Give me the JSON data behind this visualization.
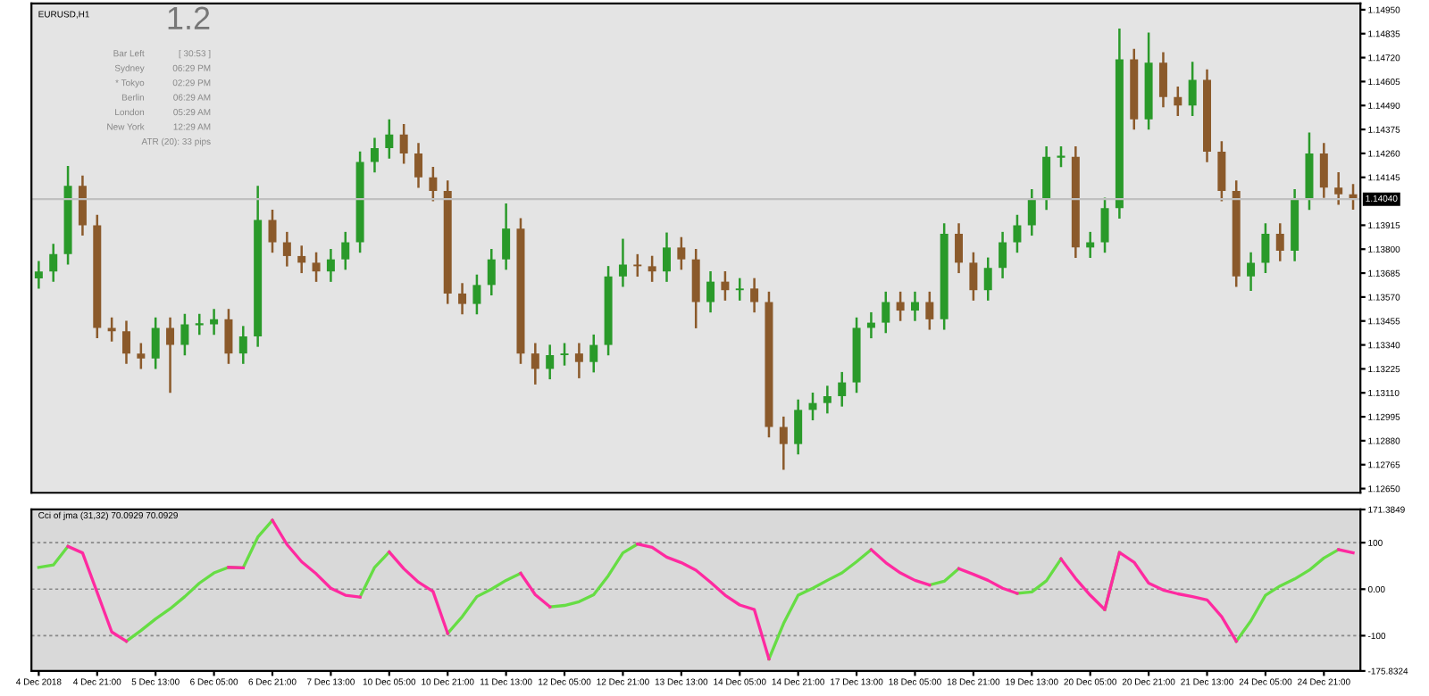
{
  "chart_data": [
    {
      "type": "candlestick",
      "title": "EURUSD,H1",
      "categories": [
        null,
        null,
        null,
        null,
        null,
        null,
        null,
        null,
        null,
        null,
        null,
        null,
        null,
        null,
        null,
        null,
        null,
        null,
        null,
        null,
        null,
        null,
        null,
        null,
        null,
        null,
        null,
        null,
        null,
        null,
        null,
        null,
        null,
        null,
        null,
        null,
        null,
        null,
        null,
        null,
        null,
        null,
        null,
        null,
        null,
        null,
        null,
        null,
        null,
        null,
        null,
        null,
        null,
        null,
        null,
        null,
        null,
        null,
        null,
        null,
        null,
        null,
        null,
        null,
        null,
        null,
        null,
        null,
        null,
        null,
        null,
        null,
        null,
        null,
        null,
        null,
        null,
        null,
        null,
        null,
        null,
        null,
        null,
        null,
        null,
        null,
        null,
        null,
        null,
        null,
        null
      ],
      "ohlc": [
        [
          1.1366,
          1.13743,
          1.1361,
          1.13693
        ],
        [
          1.13693,
          1.13826,
          1.13643,
          1.13776
        ],
        [
          1.13776,
          1.142,
          1.13726,
          1.14104
        ],
        [
          1.14104,
          1.14154,
          1.13865,
          1.13915
        ],
        [
          1.13915,
          1.13965,
          1.13372,
          1.13422
        ],
        [
          1.13422,
          1.13472,
          1.13356,
          1.13406
        ],
        [
          1.13406,
          1.13456,
          1.13249,
          1.13299
        ],
        [
          1.13299,
          1.13349,
          1.13225,
          1.13275
        ],
        [
          1.13275,
          1.13472,
          1.13225,
          1.13422
        ],
        [
          1.13422,
          1.13472,
          1.1311,
          1.1334
        ],
        [
          1.1334,
          1.13489,
          1.1329,
          1.13439
        ],
        [
          1.13439,
          1.13489,
          1.13389,
          1.13439
        ],
        [
          1.13439,
          1.13513,
          1.13389,
          1.13463
        ],
        [
          1.13463,
          1.13513,
          1.13249,
          1.13299
        ],
        [
          1.13299,
          1.13431,
          1.13249,
          1.13381
        ],
        [
          1.13381,
          1.14104,
          1.13331,
          1.1394
        ],
        [
          1.1394,
          1.1399,
          1.13783,
          1.13833
        ],
        [
          1.13833,
          1.13883,
          1.13717,
          1.13767
        ],
        [
          1.13767,
          1.13817,
          1.13685,
          1.13735
        ],
        [
          1.13735,
          1.13785,
          1.13643,
          1.13693
        ],
        [
          1.13693,
          1.13801,
          1.13643,
          1.13751
        ],
        [
          1.13751,
          1.13883,
          1.13701,
          1.13833
        ],
        [
          1.13833,
          1.14269,
          1.13783,
          1.14219
        ],
        [
          1.14219,
          1.14335,
          1.14169,
          1.14285
        ],
        [
          1.14285,
          1.14424,
          1.14235,
          1.14351
        ],
        [
          1.14351,
          1.14401,
          1.1421,
          1.1426
        ],
        [
          1.1426,
          1.1431,
          1.14095,
          1.14145
        ],
        [
          1.14145,
          1.14195,
          1.1403,
          1.1408
        ],
        [
          1.1408,
          1.1413,
          1.13537,
          1.13587
        ],
        [
          1.13587,
          1.13637,
          1.13487,
          1.13537
        ],
        [
          1.13537,
          1.13678,
          1.13487,
          1.13628
        ],
        [
          1.13628,
          1.13801,
          1.13578,
          1.13751
        ],
        [
          1.13751,
          1.1402,
          1.13701,
          1.13899
        ],
        [
          1.13899,
          1.13949,
          1.13249,
          1.13299
        ],
        [
          1.13299,
          1.13349,
          1.1315,
          1.13225
        ],
        [
          1.13225,
          1.13341,
          1.13175,
          1.13291
        ],
        [
          1.13291,
          1.13349,
          1.13241,
          1.13299
        ],
        [
          1.13299,
          1.13349,
          1.1318,
          1.13258
        ],
        [
          1.13258,
          1.1339,
          1.13208,
          1.1334
        ],
        [
          1.1334,
          1.13719,
          1.1329,
          1.13669
        ],
        [
          1.13669,
          1.1385,
          1.13619,
          1.13726
        ],
        [
          1.13726,
          1.13776,
          1.13668,
          1.13718
        ],
        [
          1.13718,
          1.13768,
          1.13643,
          1.13693
        ],
        [
          1.13693,
          1.1388,
          1.13643,
          1.13808
        ],
        [
          1.13808,
          1.13858,
          1.13701,
          1.13751
        ],
        [
          1.13751,
          1.13801,
          1.1342,
          1.13546
        ],
        [
          1.13546,
          1.13694,
          1.13496,
          1.13644
        ],
        [
          1.13644,
          1.13694,
          1.13553,
          1.13603
        ],
        [
          1.13603,
          1.13661,
          1.13553,
          1.13611
        ],
        [
          1.13611,
          1.13661,
          1.13496,
          1.13546
        ],
        [
          1.13546,
          1.13596,
          1.12896,
          1.12946
        ],
        [
          1.12946,
          1.12996,
          1.1274,
          1.12864
        ],
        [
          1.12864,
          1.13078,
          1.12814,
          1.13028
        ],
        [
          1.13028,
          1.13111,
          1.12978,
          1.13061
        ],
        [
          1.13061,
          1.13144,
          1.13011,
          1.13094
        ],
        [
          1.13094,
          1.1321,
          1.13044,
          1.1316
        ],
        [
          1.1316,
          1.13472,
          1.1311,
          1.13422
        ],
        [
          1.13422,
          1.13497,
          1.13372,
          1.13447
        ],
        [
          1.13447,
          1.13596,
          1.13397,
          1.13546
        ],
        [
          1.13546,
          1.13596,
          1.13455,
          1.13505
        ],
        [
          1.13505,
          1.13596,
          1.13455,
          1.13546
        ],
        [
          1.13546,
          1.13596,
          1.13413,
          1.13463
        ],
        [
          1.13463,
          1.13924,
          1.13413,
          1.13874
        ],
        [
          1.13874,
          1.13924,
          1.13685,
          1.13735
        ],
        [
          1.13735,
          1.13785,
          1.13553,
          1.13603
        ],
        [
          1.13603,
          1.1376,
          1.13553,
          1.1371
        ],
        [
          1.1371,
          1.13883,
          1.1366,
          1.13833
        ],
        [
          1.13833,
          1.13965,
          1.13783,
          1.13915
        ],
        [
          1.13915,
          1.14088,
          1.13865,
          1.14038
        ],
        [
          1.14038,
          1.14294,
          1.13988,
          1.14244
        ],
        [
          1.14244,
          1.14294,
          1.14194,
          1.14244
        ],
        [
          1.14244,
          1.14294,
          1.13758,
          1.13808
        ],
        [
          1.13808,
          1.13883,
          1.13758,
          1.13833
        ],
        [
          1.13833,
          1.14047,
          1.13783,
          1.13997
        ],
        [
          1.13997,
          1.1486,
          1.13947,
          1.14712
        ],
        [
          1.14712,
          1.14762,
          1.14374,
          1.14424
        ],
        [
          1.14424,
          1.1484,
          1.14374,
          1.14696
        ],
        [
          1.14696,
          1.14746,
          1.14481,
          1.14531
        ],
        [
          1.14531,
          1.14581,
          1.1444,
          1.1449
        ],
        [
          1.1449,
          1.147,
          1.1444,
          1.14613
        ],
        [
          1.14613,
          1.14663,
          1.14218,
          1.14268
        ],
        [
          1.14268,
          1.14318,
          1.1403,
          1.1408
        ],
        [
          1.1408,
          1.1413,
          1.13619,
          1.13669
        ],
        [
          1.13669,
          1.13785,
          1.136,
          1.13735
        ],
        [
          1.13735,
          1.13924,
          1.13685,
          1.13874
        ],
        [
          1.13874,
          1.13924,
          1.13742,
          1.13792
        ],
        [
          1.13792,
          1.14088,
          1.13742,
          1.14038
        ],
        [
          1.14038,
          1.1436,
          1.13988,
          1.1426
        ],
        [
          1.1426,
          1.1431,
          1.14046,
          1.14096
        ],
        [
          1.14096,
          1.1417,
          1.14013,
          1.14063
        ],
        [
          1.14063,
          1.14113,
          1.1399,
          1.1404
        ]
      ],
      "colors": [
        "#2a9a2a",
        "#2a9a2a",
        "#2a9a2a",
        "#8b5a2b",
        "#8b5a2b",
        "#8b5a2b",
        "#8b5a2b",
        "#8b5a2b",
        "#2a9a2a",
        "#8b5a2b",
        "#2a9a2a",
        "#2a9a2a",
        "#2a9a2a",
        "#8b5a2b",
        "#2a9a2a",
        "#2a9a2a",
        "#8b5a2b",
        "#8b5a2b",
        "#8b5a2b",
        "#8b5a2b",
        "#2a9a2a",
        "#2a9a2a",
        "#2a9a2a",
        "#2a9a2a",
        "#2a9a2a",
        "#8b5a2b",
        "#8b5a2b",
        "#8b5a2b",
        "#8b5a2b",
        "#8b5a2b",
        "#2a9a2a",
        "#2a9a2a",
        "#2a9a2a",
        "#8b5a2b",
        "#8b5a2b",
        "#2a9a2a",
        "#2a9a2a",
        "#8b5a2b",
        "#2a9a2a",
        "#2a9a2a",
        "#2a9a2a",
        "#8b5a2b",
        "#8b5a2b",
        "#2a9a2a",
        "#8b5a2b",
        "#8b5a2b",
        "#2a9a2a",
        "#8b5a2b",
        "#2a9a2a",
        "#8b5a2b",
        "#8b5a2b",
        "#8b5a2b",
        "#2a9a2a",
        "#2a9a2a",
        "#2a9a2a",
        "#2a9a2a",
        "#2a9a2a",
        "#2a9a2a",
        "#2a9a2a",
        "#8b5a2b",
        "#2a9a2a",
        "#8b5a2b",
        "#2a9a2a",
        "#8b5a2b",
        "#8b5a2b",
        "#2a9a2a",
        "#2a9a2a",
        "#2a9a2a",
        "#2a9a2a",
        "#2a9a2a",
        "#2a9a2a",
        "#8b5a2b",
        "#2a9a2a",
        "#2a9a2a",
        "#2a9a2a",
        "#8b5a2b",
        "#2a9a2a",
        "#8b5a2b",
        "#8b5a2b",
        "#2a9a2a",
        "#8b5a2b",
        "#8b5a2b",
        "#8b5a2b",
        "#2a9a2a",
        "#2a9a2a",
        "#8b5a2b",
        "#2a9a2a",
        "#2a9a2a",
        "#8b5a2b",
        "#8b5a2b",
        "#8b5a2b"
      ],
      "ylim": [
        1.1263,
        1.1498
      ],
      "yticks": [
        {
          "value": 1.1265,
          "label": "1.12650"
        },
        {
          "value": 1.12765,
          "label": "1.12765"
        },
        {
          "value": 1.1288,
          "label": "1.12880"
        },
        {
          "value": 1.12995,
          "label": "1.12995"
        },
        {
          "value": 1.1311,
          "label": "1.13110"
        },
        {
          "value": 1.13225,
          "label": "1.13225"
        },
        {
          "value": 1.1334,
          "label": "1.13340"
        },
        {
          "value": 1.13455,
          "label": "1.13455"
        },
        {
          "value": 1.1357,
          "label": "1.13570"
        },
        {
          "value": 1.13685,
          "label": "1.13685"
        },
        {
          "value": 1.138,
          "label": "1.13800"
        },
        {
          "value": 1.13915,
          "label": "1.13915"
        },
        {
          "value": 1.14145,
          "label": "1.14145"
        },
        {
          "value": 1.1426,
          "label": "1.14260"
        },
        {
          "value": 1.14375,
          "label": "1.14375"
        },
        {
          "value": 1.1449,
          "label": "1.14490"
        },
        {
          "value": 1.14605,
          "label": "1.14605"
        },
        {
          "value": 1.1472,
          "label": "1.14720"
        },
        {
          "value": 1.14835,
          "label": "1.14835"
        },
        {
          "value": 1.1495,
          "label": "1.14950"
        }
      ],
      "ref_lines": [
        {
          "axis": "y",
          "value": 1.1404,
          "label": "1.14040",
          "color": "#c0c0c0"
        }
      ],
      "annotations": [
        "1.2",
        "Bar Left",
        "[ 30:53 ]",
        "Sydney",
        "06:29 PM",
        "* Tokyo",
        "02:29 PM",
        "Berlin",
        "06:29 AM",
        "London",
        "05:29 AM",
        "New York",
        "12:29 AM",
        "ATR (20): 33 pips"
      ]
    },
    {
      "type": "line",
      "title": "Cci of jma (31,32) 70.0929 70.0929",
      "categories": [
        "4 Dec 2018",
        null,
        null,
        null,
        "4 Dec 21:00",
        null,
        null,
        null,
        "5 Dec 13:00",
        null,
        null,
        null,
        "6 Dec 05:00",
        null,
        null,
        null,
        "6 Dec 21:00",
        null,
        null,
        null,
        "7 Dec 13:00",
        null,
        null,
        null,
        "10 Dec 05:00",
        null,
        null,
        null,
        "10 Dec 21:00",
        null,
        null,
        null,
        "11 Dec 13:00",
        null,
        null,
        null,
        "12 Dec 05:00",
        null,
        null,
        null,
        "12 Dec 21:00",
        null,
        null,
        null,
        "13 Dec 13:00",
        null,
        null,
        null,
        "14 Dec 05:00",
        null,
        null,
        null,
        "14 Dec 21:00",
        null,
        null,
        null,
        "17 Dec 13:00",
        null,
        null,
        null,
        "18 Dec 05:00",
        null,
        null,
        null,
        "18 Dec 21:00",
        null,
        null,
        null,
        "19 Dec 13:00",
        null,
        null,
        null,
        "20 Dec 05:00",
        null,
        null,
        null,
        "20 Dec 21:00",
        null,
        null,
        null,
        "21 Dec 13:00",
        null,
        null,
        null,
        "24 Dec 05:00",
        null,
        null,
        null,
        "24 Dec 21:00",
        null,
        null
      ],
      "series": [
        {
          "color": "#66dd44",
          "values": [
            47,
            52,
            92,
            null,
            null,
            null,
            -112,
            -89,
            -64,
            -42,
            -16,
            13,
            35,
            47,
            46,
            112,
            148,
            null,
            null,
            null,
            null,
            null,
            -17,
            47,
            80,
            null,
            null,
            null,
            -95,
            -59,
            -16,
            0,
            19,
            34,
            null,
            -38,
            -35,
            -27,
            -12,
            29,
            78,
            97,
            null,
            null,
            null,
            null,
            null,
            null,
            null,
            null,
            -150,
            -74,
            -13,
            2,
            19,
            35,
            59,
            85,
            null,
            null,
            null,
            9,
            17,
            44,
            null,
            null,
            null,
            -9,
            -6,
            18,
            65,
            null,
            null,
            -44,
            79,
            null,
            null,
            null,
            null,
            null,
            null,
            null,
            -112,
            -68,
            -13,
            7,
            22,
            41,
            67,
            85,
            null
          ]
        },
        {
          "color": "#ff2aa0",
          "values": [
            null,
            null,
            92,
            78,
            -7,
            -92,
            -112,
            null,
            null,
            null,
            null,
            null,
            null,
            47,
            46,
            null,
            148,
            96,
            59,
            33,
            2,
            -13,
            -17,
            null,
            80,
            44,
            15,
            -5,
            -95,
            null,
            null,
            null,
            null,
            34,
            -12,
            -38,
            null,
            null,
            null,
            null,
            null,
            97,
            90,
            69,
            57,
            41,
            15,
            -13,
            -34,
            -44,
            -150,
            null,
            null,
            null,
            null,
            null,
            null,
            85,
            57,
            35,
            19,
            9,
            null,
            44,
            32,
            19,
            2,
            -9,
            null,
            null,
            65,
            23,
            -13,
            -44,
            79,
            58,
            13,
            -2,
            -10,
            -16,
            -23,
            -59,
            -112,
            null,
            null,
            null,
            null,
            null,
            null,
            85,
            78
          ]
        }
      ],
      "ylim": [
        -175.8324,
        171.3849
      ],
      "yticks": [
        {
          "value": -175.8324,
          "label": "-175.8324"
        },
        {
          "value": -100,
          "label": "-100"
        },
        {
          "value": 0,
          "label": "0.00"
        },
        {
          "value": 100,
          "label": "100"
        },
        {
          "value": 171.3849,
          "label": "171.3849"
        }
      ],
      "grid": "y",
      "line_style": "solid"
    }
  ]
}
